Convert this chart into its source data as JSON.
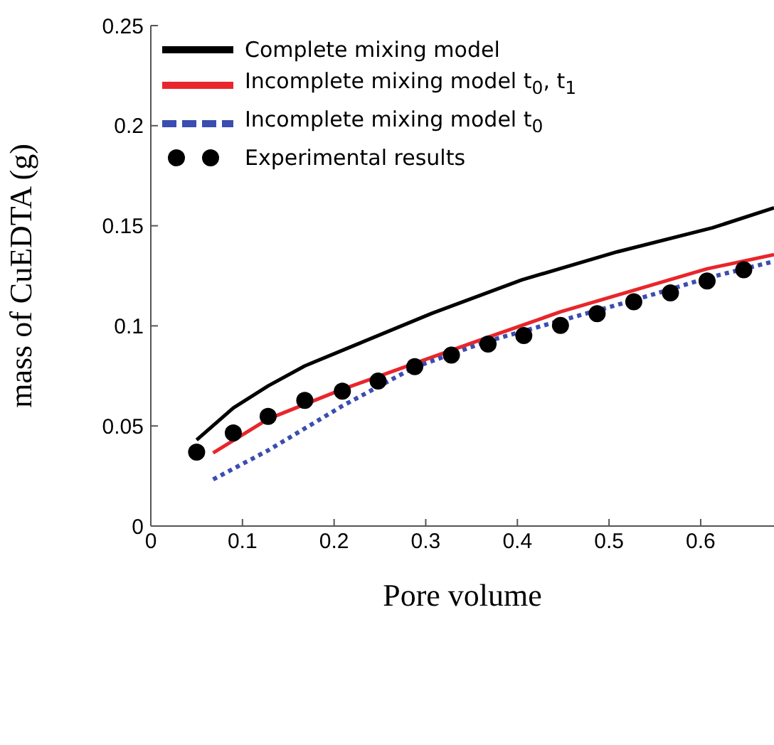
{
  "chart_data": {
    "type": "line",
    "xlabel": "Pore volume",
    "ylabel": "mass of CuEDTA (g)",
    "xlim": [
      0,
      0.68
    ],
    "ylim": [
      0,
      0.25
    ],
    "xticks": [
      0,
      0.1,
      0.2,
      0.3,
      0.4,
      0.5,
      0.6
    ],
    "yticks": [
      0,
      0.05,
      0.1,
      0.15,
      0.2,
      0.25
    ],
    "grid": false,
    "legend": "top left",
    "marker": "none",
    "series": [
      {
        "name": "Complete mixing model",
        "color": "#000000",
        "line_style": "solid",
        "x": [
          0.05,
          0.09,
          0.128,
          0.168,
          0.224,
          0.307,
          0.405,
          0.509,
          0.613,
          0.68
        ],
        "values": [
          0.043,
          0.059,
          0.07,
          0.08,
          0.0906,
          0.1063,
          0.123,
          0.137,
          0.149,
          0.159
        ]
      },
      {
        "name": "Incomplete mixing model t$_{0}$, t$_{1}$",
        "color": "#e8262b",
        "line_style": "solid",
        "x": [
          0.068,
          0.128,
          0.209,
          0.288,
          0.368,
          0.447,
          0.527,
          0.607,
          0.68
        ],
        "values": [
          0.0365,
          0.0535,
          0.0683,
          0.0813,
          0.0943,
          0.107,
          0.1178,
          0.1285,
          0.1356
        ]
      },
      {
        "name": "Incomplete mixing model t$_{0}$",
        "color": "#3b4db0",
        "line_style": "dotted",
        "x": [
          0.068,
          0.128,
          0.209,
          0.288,
          0.368,
          0.447,
          0.527,
          0.607,
          0.68
        ],
        "values": [
          0.0233,
          0.0378,
          0.06,
          0.0794,
          0.0924,
          0.1026,
          0.1128,
          0.1239,
          0.1322
        ]
      },
      {
        "name": "Experimental results",
        "type": "scatter",
        "color": "#000000",
        "marker": "circle",
        "x": [
          0.05,
          0.09,
          0.128,
          0.168,
          0.209,
          0.248,
          0.288,
          0.328,
          0.368,
          0.407,
          0.447,
          0.487,
          0.527,
          0.567,
          0.607,
          0.647
        ],
        "values": [
          0.0369,
          0.0465,
          0.0548,
          0.0628,
          0.0674,
          0.0724,
          0.0796,
          0.0854,
          0.0909,
          0.0952,
          0.1002,
          0.1061,
          0.112,
          0.1165,
          0.1224,
          0.128
        ]
      }
    ]
  }
}
